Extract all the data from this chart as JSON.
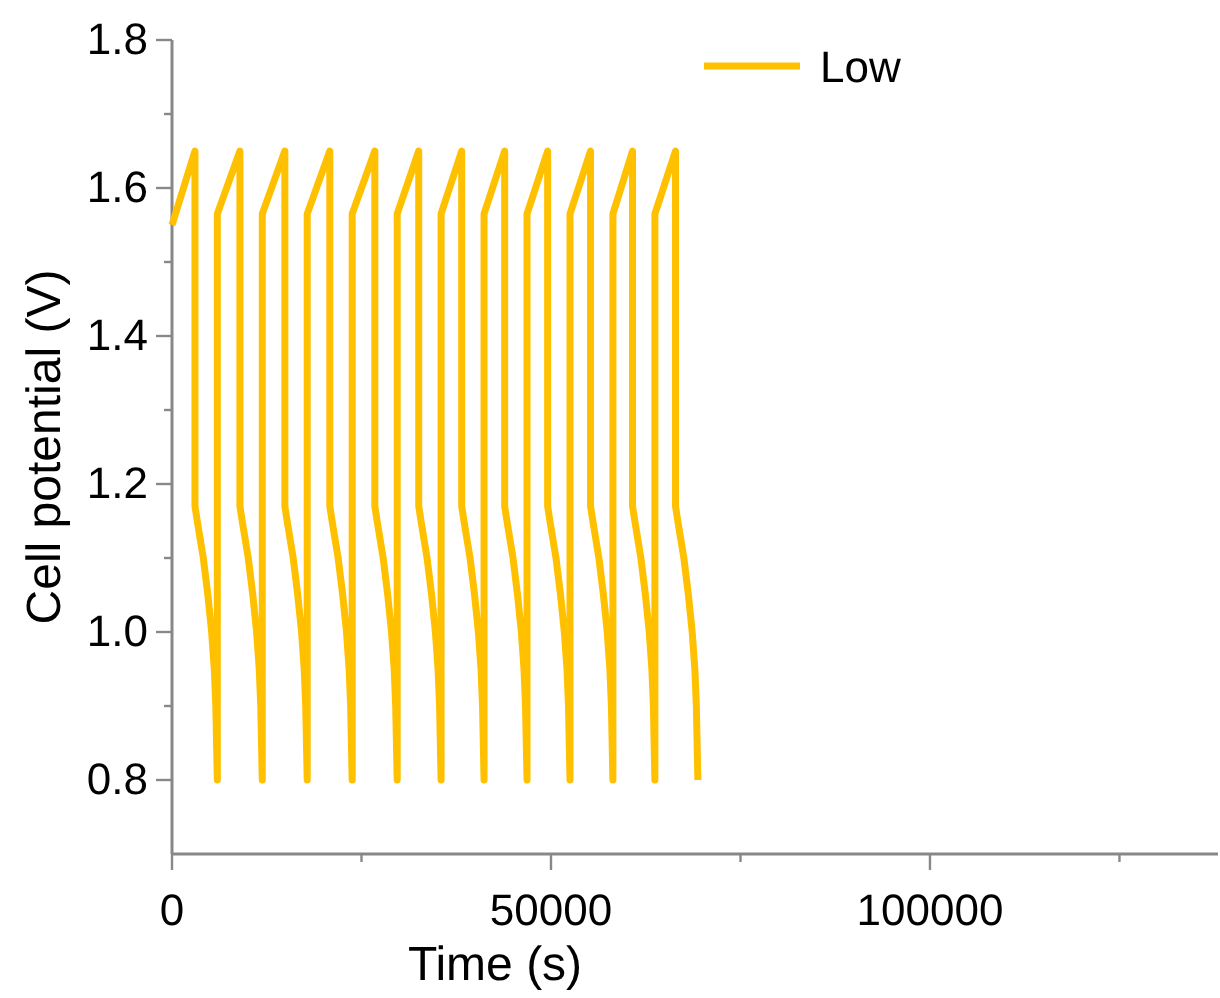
{
  "chart_data": {
    "type": "line",
    "xlabel": "Time (s)",
    "ylabel": "Cell potential (V)",
    "xlim": [
      0,
      138000
    ],
    "ylim": [
      0.7,
      1.8
    ],
    "xticks": [
      0,
      {
        "value": 25000,
        "label": null
      },
      50000,
      {
        "value": 75000,
        "label": null
      },
      100000,
      {
        "value": 125000,
        "label": null
      }
    ],
    "yticks": [
      0.8,
      {
        "value": 0.9,
        "label": null
      },
      "1.0",
      {
        "value": 1.1,
        "label": null
      },
      1.2,
      {
        "value": 1.3,
        "label": null
      },
      1.4,
      {
        "value": 1.5,
        "label": null
      },
      1.6,
      {
        "value": 1.7,
        "label": null
      },
      1.8
    ],
    "grid": false,
    "legend": "top right",
    "marker": "none",
    "line_style": "solid",
    "series": [
      {
        "name": "Low",
        "color": "#ffc000",
        "x": [
          0,
          3030,
          3030,
          3330,
          4130,
          4730,
          5230,
          5580,
          5780,
          5980,
          5980,
          8960,
          8960,
          9260,
          10060,
          10660,
          11160,
          11510,
          11710,
          11910,
          11910,
          14890,
          14890,
          15190,
          15990,
          16590,
          17090,
          17440,
          17640,
          17840,
          17840,
          20820,
          20820,
          21120,
          21920,
          22520,
          23020,
          23370,
          23570,
          23770,
          23770,
          26760,
          26760,
          27060,
          27860,
          28460,
          28960,
          29310,
          29510,
          29710,
          29710,
          32550,
          32550,
          32850,
          33650,
          34250,
          34750,
          35100,
          35300,
          35500,
          35500,
          38220,
          38220,
          38520,
          39320,
          39920,
          40420,
          40770,
          40970,
          41170,
          41170,
          43890,
          43890,
          44190,
          44990,
          45590,
          46090,
          46440,
          46640,
          46840,
          46840,
          49560,
          49560,
          49860,
          50660,
          51260,
          51760,
          52110,
          52310,
          52510,
          52510,
          55220,
          55220,
          55520,
          56320,
          56920,
          57420,
          57770,
          57970,
          58170,
          58170,
          60760,
          60760,
          61060,
          61860,
          62460,
          62960,
          63310,
          63510,
          63710,
          63710,
          66430,
          66430,
          66730,
          67530,
          68130,
          68630,
          68980,
          69180,
          69380
        ],
        "values": [
          1.55,
          1.65,
          1.17,
          1.15,
          1.1,
          1.05,
          1.0,
          0.95,
          0.9,
          0.8,
          1.565,
          1.65,
          1.17,
          1.15,
          1.1,
          1.05,
          1.0,
          0.95,
          0.9,
          0.8,
          1.565,
          1.65,
          1.17,
          1.15,
          1.1,
          1.05,
          1.0,
          0.95,
          0.9,
          0.8,
          1.565,
          1.65,
          1.17,
          1.15,
          1.1,
          1.05,
          1.0,
          0.95,
          0.9,
          0.8,
          1.565,
          1.65,
          1.17,
          1.15,
          1.1,
          1.05,
          1.0,
          0.95,
          0.9,
          0.8,
          1.565,
          1.65,
          1.17,
          1.15,
          1.1,
          1.05,
          1.0,
          0.95,
          0.9,
          0.8,
          1.565,
          1.65,
          1.17,
          1.15,
          1.1,
          1.05,
          1.0,
          0.95,
          0.9,
          0.8,
          1.565,
          1.65,
          1.17,
          1.15,
          1.1,
          1.05,
          1.0,
          0.95,
          0.9,
          0.8,
          1.565,
          1.65,
          1.17,
          1.15,
          1.1,
          1.05,
          1.0,
          0.95,
          0.9,
          0.8,
          1.565,
          1.65,
          1.17,
          1.15,
          1.1,
          1.05,
          1.0,
          0.95,
          0.9,
          0.8,
          1.565,
          1.65,
          1.17,
          1.15,
          1.1,
          1.05,
          1.0,
          0.95,
          0.9,
          0.8,
          1.565,
          1.65,
          1.17,
          1.15,
          1.1,
          1.05,
          1.0,
          0.95,
          0.9,
          0.8
        ]
      }
    ]
  }
}
